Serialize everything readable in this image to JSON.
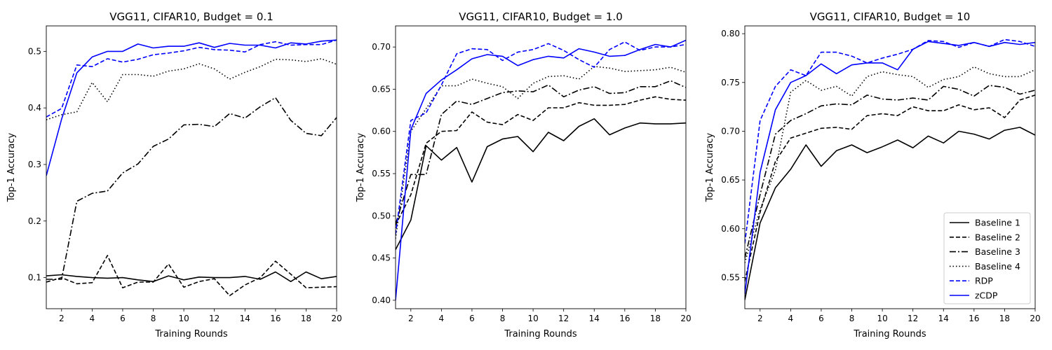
{
  "chart_data": [
    {
      "type": "line",
      "title": "VGG11, CIFAR10, Budget = 0.1",
      "xlabel": "Training Rounds",
      "ylabel": "Top-1 Accuracy",
      "xlim": [
        1,
        20
      ],
      "ylim": [
        0.045,
        0.545
      ],
      "xticks": [
        "2",
        "4",
        "6",
        "8",
        "10",
        "12",
        "14",
        "16",
        "18",
        "20"
      ],
      "yticks": [
        "0.1",
        "0.2",
        "0.3",
        "0.4",
        "0.5"
      ],
      "x": [
        1,
        2,
        3,
        4,
        5,
        6,
        7,
        8,
        9,
        10,
        11,
        12,
        13,
        14,
        15,
        16,
        17,
        18,
        19,
        20
      ],
      "series": [
        {
          "name": "Baseline 1",
          "values": [
            0.103,
            0.105,
            0.102,
            0.1,
            0.099,
            0.1,
            0.096,
            0.093,
            0.103,
            0.096,
            0.101,
            0.1,
            0.1,
            0.102,
            0.097,
            0.11,
            0.093,
            0.11,
            0.098,
            0.102
          ]
        },
        {
          "name": "Baseline 2",
          "values": [
            0.092,
            0.1,
            0.089,
            0.091,
            0.139,
            0.082,
            0.092,
            0.092,
            0.124,
            0.083,
            0.093,
            0.098,
            0.068,
            0.087,
            0.1,
            0.129,
            0.106,
            0.082,
            0.083,
            0.084
          ]
        },
        {
          "name": "Baseline 3",
          "values": [
            0.097,
            0.097,
            0.235,
            0.249,
            0.253,
            0.285,
            0.301,
            0.332,
            0.345,
            0.37,
            0.371,
            0.367,
            0.39,
            0.382,
            0.402,
            0.418,
            0.378,
            0.355,
            0.351,
            0.383
          ]
        },
        {
          "name": "Baseline 4",
          "values": [
            0.379,
            0.388,
            0.393,
            0.445,
            0.411,
            0.459,
            0.459,
            0.456,
            0.465,
            0.469,
            0.478,
            0.469,
            0.451,
            0.463,
            0.473,
            0.486,
            0.485,
            0.482,
            0.487,
            0.477
          ]
        },
        {
          "name": "RDP",
          "values": [
            0.384,
            0.399,
            0.476,
            0.473,
            0.487,
            0.481,
            0.486,
            0.494,
            0.497,
            0.501,
            0.507,
            0.503,
            0.502,
            0.499,
            0.512,
            0.517,
            0.511,
            0.512,
            0.512,
            0.52
          ]
        },
        {
          "name": "zCDP",
          "values": [
            0.28,
            0.38,
            0.462,
            0.49,
            0.5,
            0.5,
            0.513,
            0.506,
            0.509,
            0.509,
            0.515,
            0.507,
            0.514,
            0.511,
            0.511,
            0.506,
            0.515,
            0.513,
            0.518,
            0.52
          ]
        }
      ]
    },
    {
      "type": "line",
      "title": "VGG11, CIFAR10, Budget = 1.0",
      "xlabel": "Training Rounds",
      "ylabel": "Top-1 Accuracy",
      "xlim": [
        1,
        20
      ],
      "ylim": [
        0.39,
        0.725
      ],
      "xticks": [
        "2",
        "4",
        "6",
        "8",
        "10",
        "12",
        "14",
        "16",
        "18",
        "20"
      ],
      "yticks": [
        "0.40",
        "0.45",
        "0.50",
        "0.55",
        "0.60",
        "0.65",
        "0.70"
      ],
      "x": [
        1,
        2,
        3,
        4,
        5,
        6,
        7,
        8,
        9,
        10,
        11,
        12,
        13,
        14,
        15,
        16,
        17,
        18,
        19,
        20
      ],
      "series": [
        {
          "name": "Baseline 1",
          "values": [
            0.46,
            0.495,
            0.583,
            0.566,
            0.581,
            0.54,
            0.582,
            0.591,
            0.594,
            0.576,
            0.599,
            0.589,
            0.606,
            0.615,
            0.596,
            0.604,
            0.61,
            0.609,
            0.609,
            0.61
          ]
        },
        {
          "name": "Baseline 2",
          "values": [
            0.489,
            0.525,
            0.586,
            0.6,
            0.601,
            0.623,
            0.611,
            0.608,
            0.62,
            0.613,
            0.628,
            0.628,
            0.634,
            0.631,
            0.631,
            0.632,
            0.637,
            0.641,
            0.638,
            0.637
          ]
        },
        {
          "name": "Baseline 3",
          "values": [
            0.49,
            0.549,
            0.549,
            0.62,
            0.636,
            0.632,
            0.639,
            0.646,
            0.648,
            0.647,
            0.655,
            0.641,
            0.649,
            0.653,
            0.645,
            0.646,
            0.653,
            0.653,
            0.66,
            0.652
          ]
        },
        {
          "name": "Baseline 4",
          "values": [
            0.473,
            0.6,
            0.627,
            0.654,
            0.654,
            0.662,
            0.657,
            0.653,
            0.639,
            0.657,
            0.665,
            0.666,
            0.662,
            0.677,
            0.675,
            0.671,
            0.672,
            0.673,
            0.676,
            0.67
          ]
        },
        {
          "name": "RDP",
          "values": [
            0.478,
            0.613,
            0.622,
            0.655,
            0.692,
            0.698,
            0.697,
            0.684,
            0.694,
            0.697,
            0.704,
            0.696,
            0.685,
            0.676,
            0.697,
            0.706,
            0.696,
            0.7,
            0.7,
            0.703
          ]
        },
        {
          "name": "zCDP",
          "values": [
            0.4,
            0.602,
            0.645,
            0.661,
            0.673,
            0.686,
            0.691,
            0.689,
            0.678,
            0.685,
            0.689,
            0.687,
            0.698,
            0.694,
            0.689,
            0.69,
            0.697,
            0.703,
            0.7,
            0.708
          ]
        }
      ]
    },
    {
      "type": "line",
      "title": "VGG11, CIFAR10, Budget = 10",
      "xlabel": "Training Rounds",
      "ylabel": "Top-1 Accuracy",
      "xlim": [
        1,
        20
      ],
      "ylim": [
        0.518,
        0.808
      ],
      "xticks": [
        "2",
        "4",
        "6",
        "8",
        "10",
        "12",
        "14",
        "16",
        "18",
        "20"
      ],
      "yticks": [
        "0.55",
        "0.60",
        "0.65",
        "0.70",
        "0.75",
        "0.80"
      ],
      "x": [
        1,
        2,
        3,
        4,
        5,
        6,
        7,
        8,
        9,
        10,
        11,
        12,
        13,
        14,
        15,
        16,
        17,
        18,
        19,
        20
      ],
      "legend_position": "lower-right",
      "series": [
        {
          "name": "Baseline 1",
          "values": [
            0.527,
            0.606,
            0.642,
            0.661,
            0.686,
            0.664,
            0.68,
            0.686,
            0.678,
            0.684,
            0.691,
            0.683,
            0.695,
            0.688,
            0.7,
            0.697,
            0.692,
            0.701,
            0.704,
            0.696
          ]
        },
        {
          "name": "Baseline 2",
          "values": [
            0.546,
            0.617,
            0.669,
            0.693,
            0.698,
            0.703,
            0.704,
            0.702,
            0.716,
            0.718,
            0.716,
            0.725,
            0.721,
            0.721,
            0.727,
            0.722,
            0.724,
            0.714,
            0.732,
            0.737
          ]
        },
        {
          "name": "Baseline 3",
          "values": [
            0.57,
            0.635,
            0.697,
            0.711,
            0.718,
            0.726,
            0.728,
            0.727,
            0.737,
            0.733,
            0.732,
            0.734,
            0.732,
            0.746,
            0.743,
            0.736,
            0.747,
            0.745,
            0.738,
            0.742
          ]
        },
        {
          "name": "Baseline 4",
          "values": [
            0.565,
            0.62,
            0.66,
            0.74,
            0.752,
            0.742,
            0.746,
            0.736,
            0.756,
            0.761,
            0.758,
            0.756,
            0.745,
            0.753,
            0.756,
            0.766,
            0.759,
            0.756,
            0.756,
            0.763
          ]
        },
        {
          "name": "RDP",
          "values": [
            0.585,
            0.711,
            0.746,
            0.763,
            0.757,
            0.781,
            0.781,
            0.777,
            0.77,
            0.775,
            0.779,
            0.784,
            0.793,
            0.792,
            0.786,
            0.791,
            0.787,
            0.794,
            0.792,
            0.787
          ]
        },
        {
          "name": "zCDP",
          "values": [
            0.533,
            0.658,
            0.722,
            0.75,
            0.757,
            0.769,
            0.759,
            0.768,
            0.77,
            0.77,
            0.763,
            0.784,
            0.792,
            0.79,
            0.788,
            0.791,
            0.787,
            0.791,
            0.789,
            0.791
          ]
        }
      ]
    }
  ],
  "series_styles": [
    {
      "name": "Baseline 1",
      "color": "#000000",
      "dash": "solid"
    },
    {
      "name": "Baseline 2",
      "color": "#000000",
      "dash": "dashed"
    },
    {
      "name": "Baseline 3",
      "color": "#000000",
      "dash": "dashdot"
    },
    {
      "name": "Baseline 4",
      "color": "#000000",
      "dash": "dotted"
    },
    {
      "name": "RDP",
      "color": "#0000ff",
      "dash": "dashed"
    },
    {
      "name": "zCDP",
      "color": "#0000ff",
      "dash": "solid"
    }
  ]
}
